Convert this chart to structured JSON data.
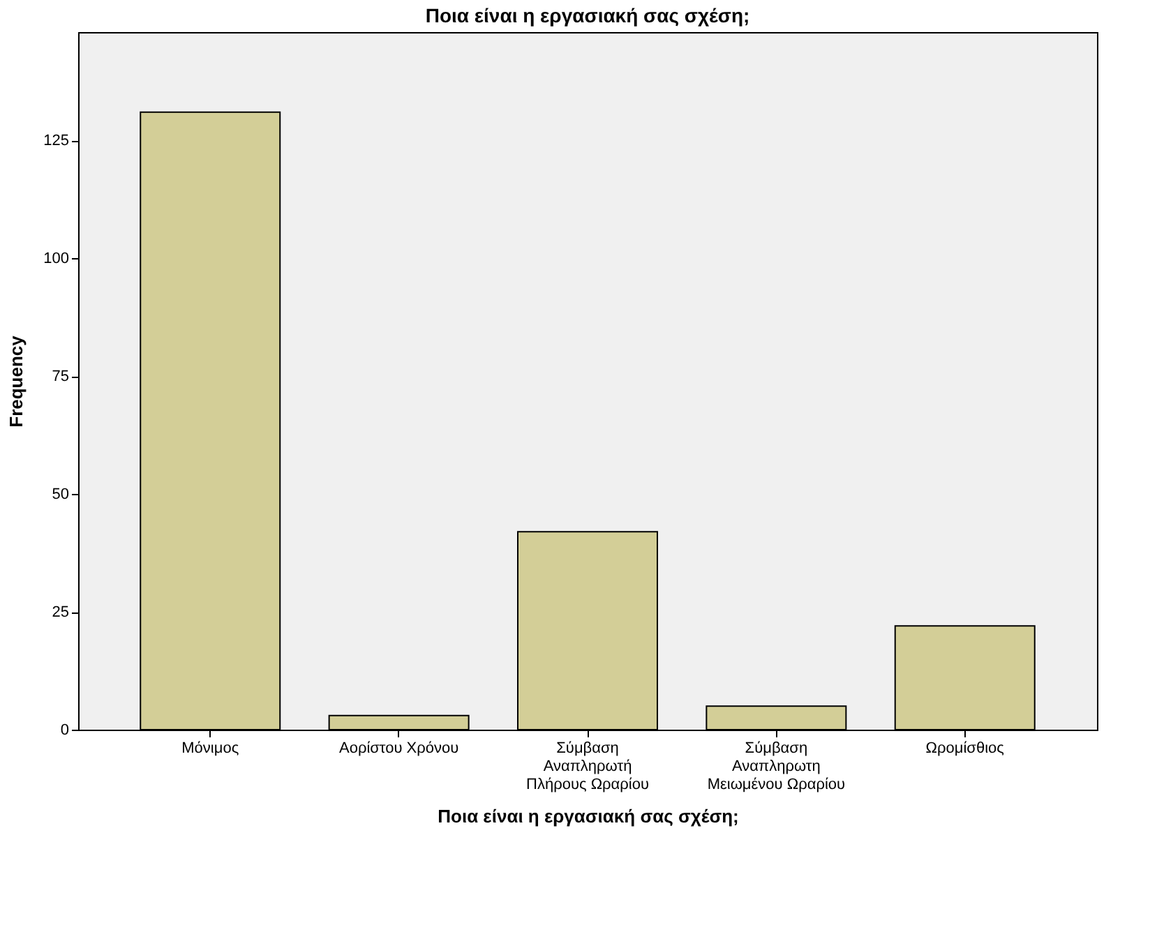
{
  "chart_data": {
    "type": "bar",
    "title": "Ποια είναι η εργασιακή σας σχέση;",
    "xlabel": "Ποια είναι η εργασιακή σας σχέση;",
    "ylabel": "Frequency",
    "categories": [
      "Μόνιμος",
      "Αορίστου Χρόνου",
      "Σύμβαση\nΑναπληρωτή\nΠλήρους Ωραρίου",
      "Σύμβαση\nΑναπληρωτη\nΜειωμένου Ωραρίου",
      "Ωρομίσθιος"
    ],
    "values": [
      131,
      3,
      42,
      5,
      22
    ],
    "color": "#d3ce97",
    "ylim": [
      0,
      148
    ],
    "yticks": [
      0,
      25,
      50,
      75,
      100,
      125
    ],
    "grid": false
  }
}
